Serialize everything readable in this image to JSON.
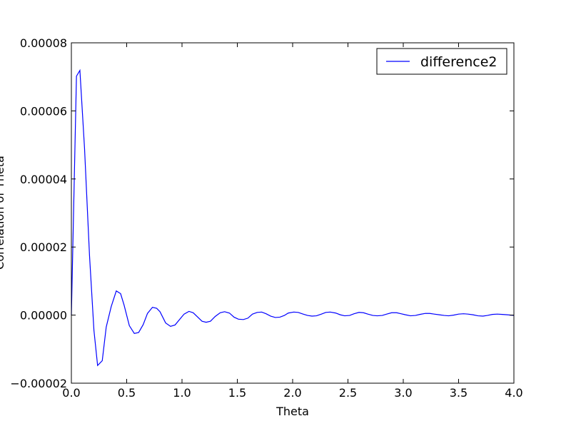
{
  "chart_data": {
    "type": "line",
    "xlabel": "Theta",
    "ylabel": "Correlation of Theta",
    "xlim": [
      0.0,
      4.0
    ],
    "ylim": [
      -2e-05,
      8e-05
    ],
    "x_ticks": [
      "0.0",
      "0.5",
      "1.0",
      "1.5",
      "2.0",
      "2.5",
      "3.0",
      "3.5",
      "4.0"
    ],
    "y_ticks": [
      "−0.00002",
      "0.00000",
      "0.00002",
      "0.00004",
      "0.00006",
      "0.00008"
    ],
    "x_tick_values": [
      0.0,
      0.5,
      1.0,
      1.5,
      2.0,
      2.5,
      3.0,
      3.5,
      4.0
    ],
    "y_tick_values": [
      -2e-05,
      0.0,
      2e-05,
      4e-05,
      6e-05,
      8e-05
    ],
    "legend_position": "top-right",
    "grid": false,
    "series": [
      {
        "name": "difference2",
        "color": "#0000ff",
        "x": [
          0.0,
          0.046,
          0.077,
          0.119,
          0.164,
          0.204,
          0.237,
          0.279,
          0.315,
          0.36,
          0.406,
          0.445,
          0.476,
          0.524,
          0.569,
          0.608,
          0.649,
          0.688,
          0.733,
          0.771,
          0.801,
          0.852,
          0.896,
          0.937,
          0.98,
          1.019,
          1.063,
          1.101,
          1.139,
          1.181,
          1.218,
          1.257,
          1.3,
          1.345,
          1.385,
          1.429,
          1.47,
          1.51,
          1.555,
          1.595,
          1.637,
          1.68,
          1.72,
          1.76,
          1.802,
          1.843,
          1.885,
          1.925,
          1.96,
          2.01,
          2.05,
          2.095,
          2.135,
          2.175,
          2.215,
          2.26,
          2.3,
          2.34,
          2.39,
          2.43,
          2.47,
          2.515,
          2.555,
          2.6,
          2.64,
          2.68,
          2.725,
          2.765,
          2.81,
          2.85,
          2.895,
          2.94,
          2.98,
          3.02,
          3.065,
          3.11,
          3.15,
          3.2,
          3.24,
          3.28,
          3.325,
          3.37,
          3.41,
          3.455,
          3.5,
          3.545,
          3.585,
          3.63,
          3.675,
          3.72,
          3.76,
          3.805,
          3.85,
          3.895,
          3.94,
          4.0
        ],
        "y": [
          0.0,
          7.02e-05,
          7.19e-05,
          4.9e-05,
          1.75e-05,
          -4.5e-06,
          -1.48e-05,
          -1.34e-05,
          -3.5e-06,
          2.5e-06,
          7.1e-06,
          6.3e-06,
          3e-06,
          -3.1e-06,
          -5.4e-06,
          -5.1e-06,
          -2.8e-06,
          5e-07,
          2.3e-06,
          2e-06,
          1e-06,
          -2.3e-06,
          -3.3e-06,
          -2.9e-06,
          -1.2e-06,
          3e-07,
          1.1e-06,
          7e-07,
          -5e-07,
          -1.8e-06,
          -2.1e-06,
          -1.8e-06,
          -4e-07,
          7e-07,
          1e-06,
          6e-07,
          -6e-07,
          -1.2e-06,
          -1.3e-06,
          -9e-07,
          3e-07,
          8e-07,
          9e-07,
          4e-07,
          -3e-07,
          -7e-07,
          -6e-07,
          -1e-07,
          6e-07,
          9e-07,
          8e-07,
          3e-07,
          -1e-07,
          -3e-07,
          -2e-07,
          3e-07,
          8e-07,
          9e-07,
          6e-07,
          1e-07,
          -2e-07,
          -1e-07,
          4e-07,
          8e-07,
          7e-07,
          3e-07,
          -1e-07,
          -2e-07,
          -1e-07,
          3e-07,
          7e-07,
          7e-07,
          4e-07,
          1e-07,
          -2e-07,
          -1e-07,
          2e-07,
          5e-07,
          5e-07,
          3e-07,
          1e-07,
          -1e-07,
          -2e-07,
          0.0,
          3e-07,
          4e-07,
          3e-07,
          1e-07,
          -2e-07,
          -3e-07,
          -1e-07,
          2e-07,
          3e-07,
          2e-07,
          1e-07,
          -1e-07
        ]
      }
    ]
  }
}
